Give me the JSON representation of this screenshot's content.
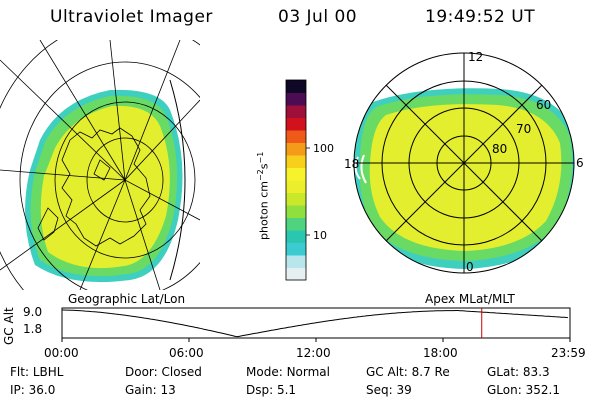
{
  "header": {
    "instrument": "Ultraviolet Imager",
    "date": "03 Jul 00",
    "time": "19:49:52 UT"
  },
  "colors": {
    "scale": [
      "#e6f0f2",
      "#b8e6ec",
      "#3ccbd0",
      "#29c7b0",
      "#4fd37f",
      "#8fdf3f",
      "#c9e82a",
      "#ecee2c",
      "#f6f32c",
      "#f8cf1c",
      "#f59b1a",
      "#ef5a19",
      "#d1121d",
      "#9e0f3a",
      "#4b0c54",
      "#0e0725"
    ],
    "aurora_fill": "#e3ee2e",
    "aurora_edge": "#69da63",
    "aurora_rim": "#3fcfbf",
    "orbit_marker": "#cc0000"
  },
  "panels": {
    "left_caption": "Geographic Lat/Lon",
    "right_caption": "Apex MLat/MLT"
  },
  "mlt_grid": {
    "mlt_labels": [
      "12",
      "6",
      "0",
      "18"
    ],
    "lat_labels": [
      "60",
      "70",
      "80"
    ]
  },
  "colorbar": {
    "unit_label": "photon cm",
    "unit_sup1": "−2",
    "unit_mid": "s",
    "unit_sup2": "−1",
    "ticks": [
      "100",
      "10"
    ]
  },
  "orbit": {
    "y_label": "GC Alt",
    "y_ticks": [
      "9.0",
      "1.8"
    ],
    "x_ticks": [
      "00:00",
      "06:00",
      "12:00",
      "18:00",
      "23:59"
    ],
    "current_time_hours": 19.83
  },
  "status": {
    "row1": [
      {
        "key": "Flt:",
        "value": "LBHL"
      },
      {
        "key": "Door:",
        "value": "Closed"
      },
      {
        "key": "Mode:",
        "value": "Normal"
      },
      {
        "key": "GC Alt:",
        "value": "8.7 Re"
      },
      {
        "key": "GLat:",
        "value": "83.3"
      }
    ],
    "row2": [
      {
        "key": "IP:",
        "value": "36.0"
      },
      {
        "key": "Gain:",
        "value": "13"
      },
      {
        "key": "Dsp:",
        "value": "5.1"
      },
      {
        "key": "Seq:",
        "value": "39"
      },
      {
        "key": "GLon:",
        "value": "352.1"
      }
    ]
  }
}
